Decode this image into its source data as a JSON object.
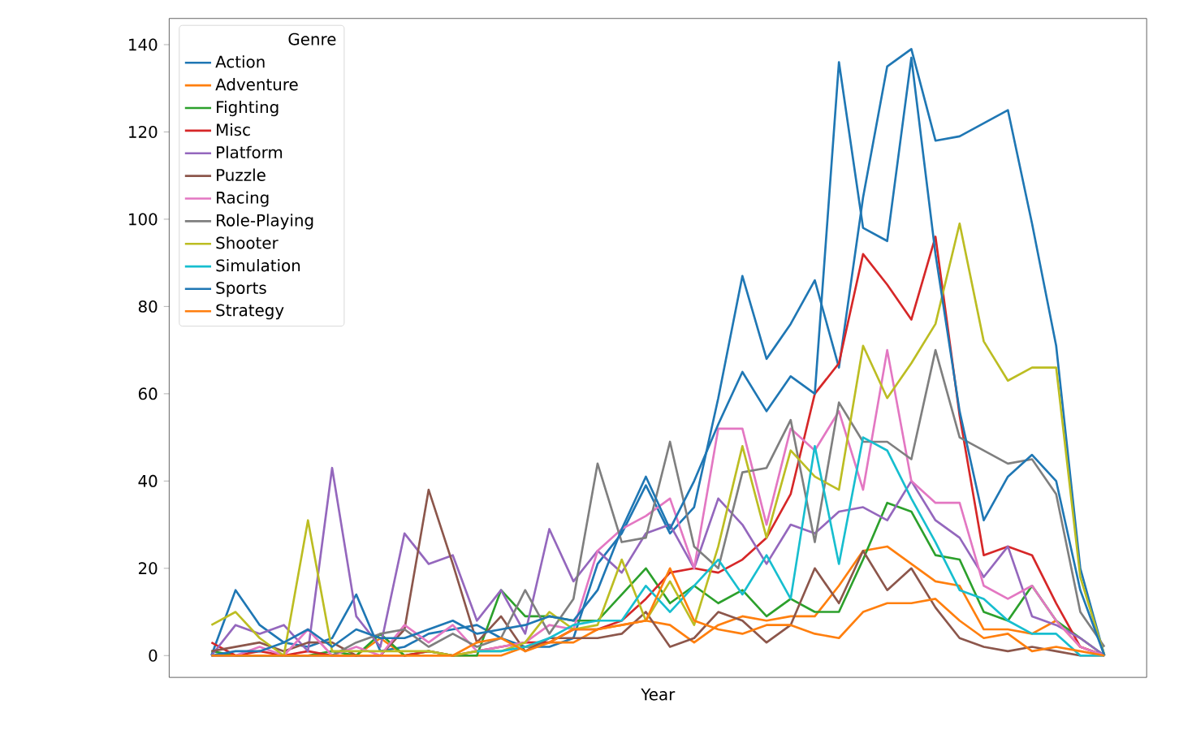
{
  "chart_data": {
    "type": "line",
    "xlabel": "Year",
    "legend_title": "Genre",
    "legend": "top left",
    "grid": false,
    "marker": "none",
    "line_style": "solid",
    "tick_labels": "y",
    "categories": [
      null,
      null,
      null,
      null,
      null,
      null,
      null,
      null,
      null,
      null,
      null,
      null,
      null,
      null,
      null,
      null,
      null,
      null,
      null,
      null,
      null,
      null,
      null,
      null,
      null,
      null,
      null,
      null,
      null,
      null,
      null,
      null,
      null,
      null,
      null,
      null,
      null,
      null
    ],
    "ylim": [
      -5,
      146
    ],
    "yticks": [
      0,
      20,
      40,
      60,
      80,
      100,
      120,
      140
    ],
    "series": [
      {
        "name": "Action",
        "color": "#1f77b4",
        "values": [
          0,
          15,
          7,
          3,
          2,
          4,
          14,
          1,
          2,
          5,
          6,
          7,
          4,
          2,
          2,
          4,
          21,
          28,
          39,
          28,
          34,
          59,
          87,
          68,
          76,
          86,
          66,
          105,
          135,
          139,
          118,
          119,
          122,
          125,
          99,
          71,
          20,
          0
        ]
      },
      {
        "name": "Adventure",
        "color": "#ff7f0e",
        "values": [
          0,
          0,
          0,
          0,
          0,
          0,
          0,
          4,
          0,
          0,
          0,
          0,
          0,
          2,
          3,
          3,
          6,
          7,
          8,
          7,
          3,
          7,
          9,
          8,
          9,
          9,
          16,
          24,
          25,
          21,
          17,
          16,
          6,
          6,
          5,
          8,
          2,
          0
        ]
      },
      {
        "name": "Fighting",
        "color": "#2ca02c",
        "values": [
          1,
          0,
          0,
          0,
          0,
          1,
          0,
          5,
          0,
          1,
          0,
          0,
          15,
          9,
          9,
          8,
          8,
          14,
          20,
          12,
          16,
          12,
          15,
          9,
          13,
          10,
          10,
          22,
          35,
          33,
          23,
          22,
          10,
          8,
          16,
          8,
          4,
          0
        ]
      },
      {
        "name": "Misc",
        "color": "#d62728",
        "values": [
          3,
          0,
          1,
          0,
          1,
          0,
          0,
          0,
          0,
          1,
          0,
          1,
          2,
          3,
          3,
          6,
          6,
          8,
          13,
          19,
          20,
          19,
          22,
          27,
          37,
          60,
          67,
          92,
          85,
          77,
          96,
          55,
          23,
          25,
          23,
          12,
          2,
          0
        ]
      },
      {
        "name": "Platform",
        "color": "#9467bd",
        "values": [
          0,
          7,
          5,
          7,
          1,
          43,
          9,
          2,
          28,
          21,
          23,
          8,
          15,
          5,
          29,
          17,
          24,
          19,
          28,
          30,
          20,
          36,
          30,
          21,
          30,
          28,
          33,
          34,
          31,
          40,
          31,
          27,
          18,
          25,
          9,
          7,
          4,
          0
        ]
      },
      {
        "name": "Puzzle",
        "color": "#8c564b",
        "values": [
          1,
          2,
          3,
          1,
          3,
          3,
          0,
          0,
          6,
          38,
          21,
          3,
          9,
          1,
          4,
          4,
          4,
          5,
          10,
          2,
          4,
          10,
          8,
          3,
          7,
          20,
          12,
          24,
          15,
          20,
          11,
          4,
          2,
          1,
          2,
          1,
          0,
          0
        ]
      },
      {
        "name": "Racing",
        "color": "#e377c2",
        "values": [
          0,
          0,
          2,
          0,
          6,
          0,
          2,
          0,
          7,
          3,
          7,
          1,
          2,
          3,
          7,
          6,
          24,
          29,
          32,
          36,
          20,
          52,
          52,
          30,
          52,
          47,
          56,
          38,
          70,
          40,
          35,
          35,
          16,
          13,
          16,
          8,
          2,
          0
        ]
      },
      {
        "name": "Role-Playing",
        "color": "#7f7f7f",
        "values": [
          0,
          0,
          0,
          0,
          0,
          0,
          3,
          5,
          6,
          2,
          5,
          2,
          4,
          15,
          5,
          13,
          44,
          26,
          27,
          49,
          25,
          20,
          42,
          43,
          54,
          26,
          58,
          49,
          49,
          45,
          70,
          50,
          47,
          44,
          45,
          37,
          10,
          2
        ]
      },
      {
        "name": "Shooter",
        "color": "#bcbd22",
        "values": [
          7,
          10,
          4,
          0,
          31,
          1,
          1,
          1,
          1,
          1,
          0,
          1,
          1,
          3,
          10,
          6,
          7,
          22,
          8,
          17,
          7,
          25,
          48,
          27,
          47,
          41,
          38,
          71,
          59,
          67,
          76,
          99,
          72,
          63,
          66,
          66,
          18,
          0
        ]
      },
      {
        "name": "Simulation",
        "color": "#17becf",
        "values": [
          null,
          null,
          null,
          null,
          null,
          null,
          null,
          null,
          null,
          null,
          null,
          1,
          1,
          2,
          4,
          7,
          8,
          8,
          16,
          10,
          16,
          22,
          14,
          23,
          13,
          48,
          21,
          50,
          47,
          36,
          26,
          15,
          13,
          8,
          5,
          5,
          0,
          0
        ]
      },
      {
        "name": "Sports",
        "color": "#1f77b4",
        "values": [
          0,
          1,
          1,
          3,
          6,
          2,
          6,
          4,
          4,
          6,
          8,
          5,
          6,
          7,
          9,
          8,
          15,
          29,
          41,
          29,
          40,
          53,
          65,
          56,
          64,
          60,
          136,
          98,
          95,
          137,
          92,
          56,
          31,
          41,
          46,
          40,
          15,
          0
        ]
      },
      {
        "name": "Strategy",
        "color": "#ff7f0e",
        "values": [
          0,
          0,
          0,
          0,
          0,
          0,
          0,
          0,
          0,
          0,
          0,
          3,
          4,
          1,
          3,
          6,
          6,
          7,
          8,
          20,
          8,
          6,
          5,
          7,
          7,
          5,
          4,
          10,
          12,
          12,
          13,
          8,
          4,
          5,
          1,
          2,
          1,
          0
        ]
      }
    ]
  }
}
